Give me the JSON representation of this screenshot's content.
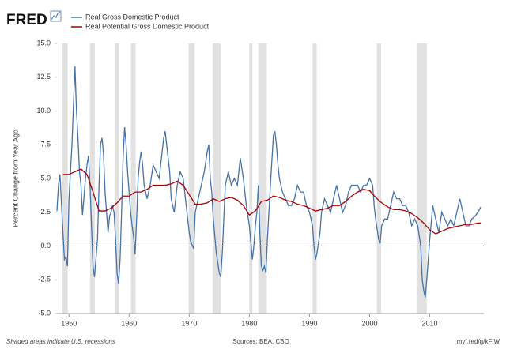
{
  "chart_data": {
    "type": "line",
    "logo": "FRED",
    "y_label": "Percent Change from Year Ago",
    "footer_left": "Shaded areas indicate U.S. recessions",
    "footer_center": "Sources: BEA, CBO",
    "footer_right": "myf.red/g/kFIW",
    "xlim": [
      1948,
      2019
    ],
    "xticks": [
      1950,
      1960,
      1970,
      1980,
      1990,
      2000,
      2010
    ],
    "ylim": [
      -5,
      15
    ],
    "yticks": [
      {
        "value": 15,
        "label": "15.0"
      },
      12.5,
      {
        "value": 10,
        "label": "10.0"
      },
      7.5,
      {
        "value": 5,
        "label": "5.0"
      },
      2.5,
      {
        "value": 0,
        "label": "0.0"
      },
      -2.5,
      {
        "value": -5,
        "label": "-5.0"
      }
    ],
    "grid": false,
    "recession_color": "#e1e1e1",
    "recessions": [
      [
        1948.9,
        1949.8
      ],
      [
        1953.5,
        1954.3
      ],
      [
        1957.6,
        1958.3
      ],
      [
        1960.3,
        1961.1
      ],
      [
        1969.9,
        1970.9
      ],
      [
        1973.9,
        1975.2
      ],
      [
        1980.0,
        1980.5
      ],
      [
        1981.5,
        1982.9
      ],
      [
        1990.5,
        1991.2
      ],
      [
        2001.2,
        2001.9
      ],
      [
        2007.9,
        2009.5
      ]
    ],
    "series": [
      {
        "name": "Real Gross Domestic Product",
        "color": "#4572a7",
        "x": [
          1948.0,
          1948.25,
          1948.5,
          1949.0,
          1949.25,
          1949.5,
          1949.75,
          1950.0,
          1950.5,
          1950.75,
          1951.0,
          1951.25,
          1951.5,
          1951.75,
          1952.0,
          1952.25,
          1952.75,
          1953.0,
          1953.25,
          1953.5,
          1953.75,
          1954.0,
          1954.25,
          1954.75,
          1955.0,
          1955.25,
          1955.5,
          1955.75,
          1956.0,
          1956.25,
          1956.5,
          1956.75,
          1957.0,
          1957.25,
          1957.5,
          1957.75,
          1958.0,
          1958.25,
          1958.5,
          1958.75,
          1959.0,
          1959.25,
          1959.5,
          1959.75,
          1960.0,
          1960.25,
          1960.5,
          1960.75,
          1961.0,
          1961.25,
          1961.5,
          1961.75,
          1962.0,
          1962.25,
          1962.5,
          1962.75,
          1963.0,
          1963.5,
          1964.0,
          1964.5,
          1965.0,
          1965.25,
          1965.75,
          1966.0,
          1966.25,
          1966.75,
          1967.0,
          1967.5,
          1968.0,
          1968.5,
          1969.0,
          1969.5,
          1970.0,
          1970.25,
          1970.75,
          1971.0,
          1971.5,
          1972.0,
          1972.5,
          1973.0,
          1973.25,
          1973.5,
          1973.75,
          1974.0,
          1974.5,
          1975.0,
          1975.25,
          1975.5,
          1976.0,
          1976.5,
          1977.0,
          1977.5,
          1978.0,
          1978.5,
          1979.0,
          1979.5,
          1980.0,
          1980.5,
          1980.75,
          1981.0,
          1981.25,
          1981.5,
          1981.75,
          1982.0,
          1982.25,
          1982.5,
          1982.75,
          1983.0,
          1983.5,
          1984.0,
          1984.25,
          1984.5,
          1984.75,
          1985.0,
          1985.5,
          1986.0,
          1986.5,
          1987.0,
          1987.5,
          1988.0,
          1988.5,
          1989.0,
          1989.5,
          1990.0,
          1990.5,
          1990.75,
          1991.0,
          1991.25,
          1991.75,
          1992.0,
          1992.5,
          1993.0,
          1993.5,
          1994.0,
          1994.5,
          1995.0,
          1995.5,
          1996.0,
          1996.5,
          1997.0,
          1997.5,
          1998.0,
          1998.5,
          1999.0,
          1999.5,
          2000.0,
          2000.5,
          2000.75,
          2001.0,
          2001.5,
          2001.75,
          2002.0,
          2002.5,
          2003.0,
          2003.5,
          2004.0,
          2004.5,
          2005.0,
          2005.5,
          2006.0,
          2006.5,
          2007.0,
          2007.5,
          2008.0,
          2008.5,
          2008.75,
          2009.0,
          2009.25,
          2009.5,
          2010.0,
          2010.5,
          2011.0,
          2011.5,
          2012.0,
          2012.5,
          2013.0,
          2013.5,
          2014.0,
          2014.5,
          2015.0,
          2015.5,
          2016.0,
          2016.5,
          2017.0,
          2017.5,
          2018.0,
          2018.5
        ],
        "values": [
          2.6,
          4.5,
          5.3,
          1.0,
          -1.0,
          -0.8,
          -1.5,
          3.5,
          7.5,
          10.5,
          13.3,
          10,
          8,
          5.5,
          4.5,
          2.3,
          5.0,
          6.0,
          6.7,
          4.5,
          1.5,
          -1.5,
          -2.3,
          0.5,
          4.5,
          7.5,
          8.0,
          6.8,
          4.0,
          2.5,
          1.0,
          2.2,
          2.5,
          3.0,
          2.5,
          0.5,
          -2.0,
          -2.8,
          -1.0,
          2.5,
          6.5,
          8.8,
          7.5,
          5.5,
          4.0,
          2.5,
          1.5,
          0.7,
          -0.6,
          2.0,
          5.0,
          6.2,
          7.0,
          6.0,
          4.5,
          4.0,
          3.5,
          4.5,
          6.0,
          5.5,
          5.0,
          6.0,
          8.0,
          8.5,
          7.5,
          5.5,
          3.5,
          2.5,
          4.5,
          5.5,
          5.0,
          3.0,
          1.0,
          0.3,
          -0.2,
          2.5,
          3.5,
          4.5,
          5.5,
          7.0,
          7.5,
          5.0,
          4.0,
          2.0,
          -0.5,
          -2.0,
          -2.3,
          -0.5,
          4.5,
          5.5,
          4.5,
          5.0,
          4.5,
          6.5,
          5.0,
          3.0,
          1.5,
          -1.0,
          0.0,
          1.5,
          2.5,
          4.5,
          1.0,
          -1.5,
          -1.8,
          -1.5,
          -2.0,
          0.5,
          4.5,
          8.2,
          8.5,
          7.5,
          6.0,
          5.0,
          4.0,
          3.5,
          3.0,
          3.0,
          3.5,
          4.5,
          4.0,
          4.0,
          3.0,
          2.5,
          1.5,
          0.0,
          -1.0,
          -0.5,
          1.0,
          2.5,
          3.5,
          3.0,
          2.5,
          3.5,
          4.5,
          3.5,
          2.5,
          3.0,
          4.0,
          4.5,
          4.5,
          4.5,
          4.0,
          4.5,
          4.5,
          5.0,
          4.5,
          3.0,
          2.0,
          0.5,
          0.2,
          1.5,
          2.0,
          2.0,
          3.0,
          4.0,
          3.5,
          3.5,
          3.0,
          3.0,
          2.5,
          1.5,
          2.0,
          1.5,
          0.0,
          -2.5,
          -3.3,
          -3.8,
          -2.5,
          0.5,
          3.0,
          2.0,
          1.0,
          2.5,
          2.0,
          1.5,
          2.0,
          1.5,
          2.5,
          3.5,
          2.5,
          1.5,
          1.5,
          2.0,
          2.2,
          2.5,
          2.9
        ]
      },
      {
        "name": "Real Potential Gross Domestic Product",
        "color": "#aa0000",
        "x": [
          1949,
          1950,
          1951,
          1952,
          1953,
          1954,
          1955,
          1956,
          1957,
          1958,
          1959,
          1960,
          1961,
          1962,
          1963,
          1964,
          1965,
          1966,
          1967,
          1968,
          1969,
          1970,
          1971,
          1972,
          1973,
          1974,
          1975,
          1976,
          1977,
          1978,
          1979,
          1980,
          1981,
          1982,
          1983,
          1984,
          1985,
          1986,
          1987,
          1988,
          1989,
          1990,
          1991,
          1992,
          1993,
          1994,
          1995,
          1996,
          1997,
          1998,
          1999,
          2000,
          2001,
          2002,
          2003,
          2004,
          2005,
          2006,
          2007,
          2008,
          2009,
          2010,
          2011,
          2012,
          2013,
          2014,
          2015,
          2016,
          2017,
          2018,
          2018.5
        ],
        "values": [
          5.3,
          5.3,
          5.5,
          5.7,
          5.3,
          4.0,
          2.6,
          2.6,
          2.8,
          3.2,
          3.7,
          3.7,
          4.0,
          4.0,
          4.2,
          4.5,
          4.5,
          4.5,
          4.6,
          4.8,
          4.5,
          3.8,
          3.1,
          3.1,
          3.2,
          3.5,
          3.3,
          3.5,
          3.6,
          3.4,
          3.0,
          2.3,
          2.6,
          3.3,
          3.4,
          3.7,
          3.6,
          3.4,
          3.3,
          3.1,
          3.0,
          2.8,
          2.6,
          2.7,
          2.8,
          3.0,
          3.0,
          3.3,
          3.7,
          4.0,
          4.2,
          4.1,
          3.6,
          3.2,
          2.9,
          2.7,
          2.7,
          2.6,
          2.4,
          2.1,
          1.7,
          1.2,
          0.9,
          1.1,
          1.3,
          1.4,
          1.5,
          1.6,
          1.6,
          1.7,
          1.7
        ]
      }
    ]
  }
}
